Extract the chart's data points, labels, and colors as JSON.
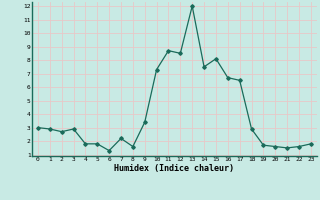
{
  "x": [
    0,
    1,
    2,
    3,
    4,
    5,
    6,
    7,
    8,
    9,
    10,
    11,
    12,
    13,
    14,
    15,
    16,
    17,
    18,
    19,
    20,
    21,
    22,
    23
  ],
  "y": [
    3.0,
    2.9,
    2.7,
    2.9,
    1.8,
    1.8,
    1.3,
    2.2,
    1.6,
    3.4,
    7.3,
    8.7,
    8.5,
    12.0,
    7.5,
    8.1,
    6.7,
    6.5,
    2.9,
    1.7,
    1.6,
    1.5,
    1.6,
    1.8
  ],
  "xlabel": "Humidex (Indice chaleur)",
  "bg_color": "#c8eae4",
  "line_color": "#1a6b5a",
  "marker_color": "#1a6b5a",
  "grid_color_major": "#e8c8c8",
  "grid_color_minor": "#e8c8c8",
  "spine_color": "#1a6b5a",
  "tick_label_color": "#000000",
  "ylim": [
    1,
    12
  ],
  "xlim": [
    -0.5,
    23.5
  ],
  "yticks": [
    1,
    2,
    3,
    4,
    5,
    6,
    7,
    8,
    9,
    10,
    11,
    12
  ],
  "xticks": [
    0,
    1,
    2,
    3,
    4,
    5,
    6,
    7,
    8,
    9,
    10,
    11,
    12,
    13,
    14,
    15,
    16,
    17,
    18,
    19,
    20,
    21,
    22,
    23
  ],
  "xticklabels": [
    "0",
    "1",
    "2",
    "3",
    "4",
    "5",
    "6",
    "7",
    "8",
    "9",
    "10",
    "11",
    "12",
    "13",
    "14",
    "15",
    "16",
    "17",
    "18",
    "19",
    "20",
    "21",
    "22",
    "23"
  ]
}
